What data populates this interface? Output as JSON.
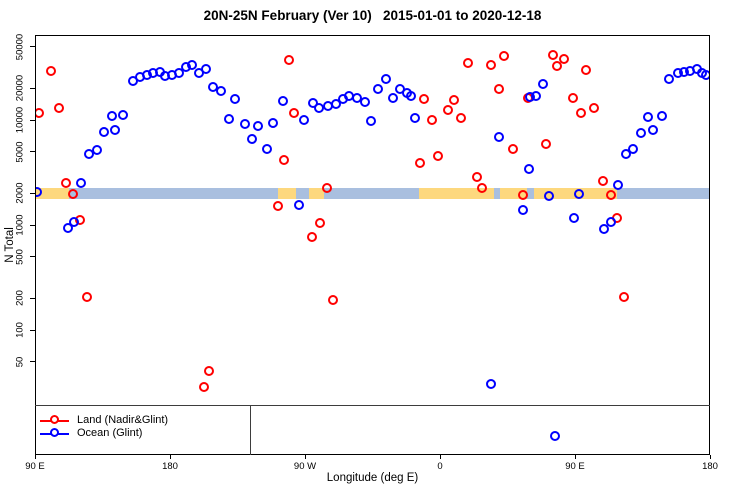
{
  "chart_data": {
    "type": "scatter",
    "title": "20N-25N February (Ver 10)   2015-01-01 to 2020-12-18",
    "xlabel": "Longitude (deg E)",
    "ylabel": "N Total",
    "x_axis": {
      "description": "longitude wrapping eastward from 90E; pos = degrees east of left edge",
      "range": [
        0,
        450
      ],
      "ticks": [
        {
          "pos": 0,
          "label": "90 E"
        },
        {
          "pos": 90,
          "label": "180"
        },
        {
          "pos": 180,
          "label": "90 W"
        },
        {
          "pos": 270,
          "label": "0"
        },
        {
          "pos": 360,
          "label": "90 E"
        },
        {
          "pos": 450,
          "label": "180"
        }
      ]
    },
    "y_axis": {
      "scale": "log",
      "ticks": [
        50,
        100,
        200,
        500,
        1000,
        2000,
        5000,
        10000,
        20000,
        50000
      ],
      "min": 6.5,
      "max": 57500
    },
    "series": [
      {
        "name": "Land (Nadir&Glint)",
        "color": "#ff0000",
        "points": [
          [
            10,
            30000
          ],
          [
            2,
            11900
          ],
          [
            15.3,
            13300
          ],
          [
            20,
            2570
          ],
          [
            24.7,
            2020
          ],
          [
            29.3,
            1140
          ],
          [
            34,
            211
          ],
          [
            112,
            29
          ],
          [
            115.3,
            42
          ],
          [
            161.3,
            1550
          ],
          [
            165.3,
            4260
          ],
          [
            168.7,
            38100
          ],
          [
            172,
            11900
          ],
          [
            184,
            785
          ],
          [
            189.3,
            1070
          ],
          [
            194,
            2300
          ],
          [
            198,
            197
          ],
          [
            256,
            3980
          ],
          [
            258.7,
            16200
          ],
          [
            264,
            10200
          ],
          [
            268,
            4640
          ],
          [
            274.7,
            12700
          ],
          [
            278.7,
            15800
          ],
          [
            283.3,
            10700
          ],
          [
            288,
            35700
          ],
          [
            294,
            2930
          ],
          [
            297.3,
            2300
          ],
          [
            303.3,
            34100
          ],
          [
            308.7,
            20200
          ],
          [
            312,
            41600
          ],
          [
            318,
            5410
          ],
          [
            324.7,
            1970
          ],
          [
            328,
            16600
          ],
          [
            340,
            6040
          ],
          [
            344.7,
            42500
          ],
          [
            347.3,
            33400
          ],
          [
            352,
            38900
          ],
          [
            358,
            16600
          ],
          [
            363.3,
            11900
          ],
          [
            366.7,
            30600
          ],
          [
            372,
            13300
          ],
          [
            378,
            2680
          ],
          [
            383.3,
            1970
          ],
          [
            387.3,
            1190
          ],
          [
            392,
            211
          ]
        ]
      },
      {
        "name": "Ocean (Glint)",
        "color": "#0000ff",
        "points": [
          [
            0.7,
            2110
          ],
          [
            21.3,
            957
          ],
          [
            25.3,
            1090
          ],
          [
            30,
            2570
          ],
          [
            35.3,
            4850
          ],
          [
            40.7,
            5290
          ],
          [
            45.3,
            7850
          ],
          [
            50.7,
            11200
          ],
          [
            52.7,
            8210
          ],
          [
            58,
            11400
          ],
          [
            64.7,
            24000
          ],
          [
            69.3,
            26200
          ],
          [
            74,
            27400
          ],
          [
            78,
            28600
          ],
          [
            82.7,
            29300
          ],
          [
            86,
            26800
          ],
          [
            90.7,
            27400
          ],
          [
            95.3,
            28600
          ],
          [
            100,
            32700
          ],
          [
            104,
            34100
          ],
          [
            108.7,
            28600
          ],
          [
            113.3,
            31300
          ],
          [
            118,
            21100
          ],
          [
            123.3,
            19300
          ],
          [
            128.7,
            10400
          ],
          [
            132.7,
            16200
          ],
          [
            139.3,
            9360
          ],
          [
            144,
            6740
          ],
          [
            148,
            8960
          ],
          [
            154,
            5410
          ],
          [
            158,
            9570
          ],
          [
            164.7,
            15500
          ],
          [
            175.3,
            1580
          ],
          [
            178.7,
            10200
          ],
          [
            184.7,
            14800
          ],
          [
            188.7,
            13300
          ],
          [
            194.7,
            13900
          ],
          [
            200,
            14500
          ],
          [
            204.7,
            16200
          ],
          [
            208.7,
            17300
          ],
          [
            214,
            16600
          ],
          [
            219.3,
            15200
          ],
          [
            223.3,
            10000
          ],
          [
            228,
            20200
          ],
          [
            233.3,
            25100
          ],
          [
            238,
            16600
          ],
          [
            242.7,
            20200
          ],
          [
            247.3,
            18500
          ],
          [
            250,
            17300
          ],
          [
            252.7,
            10700
          ],
          [
            303.3,
            31
          ],
          [
            308.7,
            7040
          ],
          [
            324.7,
            1420
          ],
          [
            328.7,
            3490
          ],
          [
            329.3,
            16900
          ],
          [
            333.3,
            17300
          ],
          [
            338,
            22500
          ],
          [
            342,
            1930
          ],
          [
            346,
            10
          ],
          [
            358.7,
            1190
          ],
          [
            362,
            2020
          ],
          [
            378.7,
            936
          ],
          [
            383.3,
            1090
          ],
          [
            388,
            2460
          ],
          [
            393.3,
            4850
          ],
          [
            398,
            5410
          ],
          [
            403.3,
            7690
          ],
          [
            408,
            10900
          ],
          [
            411.3,
            8210
          ],
          [
            417.3,
            11200
          ],
          [
            422,
            25100
          ],
          [
            428,
            28600
          ],
          [
            432,
            29300
          ],
          [
            436,
            29900
          ],
          [
            440.7,
            31300
          ],
          [
            444,
            28600
          ],
          [
            446.7,
            27400
          ]
        ]
      }
    ],
    "land_ocean_band": {
      "n_top": 2300,
      "n_bottom": 1790,
      "land_color": "#fdd87e",
      "ocean_color": "#a9bfdf",
      "segments": [
        {
          "from": 0,
          "to": 22,
          "surface": "land"
        },
        {
          "from": 22,
          "to": 161,
          "surface": "ocean"
        },
        {
          "from": 161,
          "to": 173,
          "surface": "land"
        },
        {
          "from": 173,
          "to": 182,
          "surface": "ocean"
        },
        {
          "from": 182,
          "to": 192,
          "surface": "land"
        },
        {
          "from": 192,
          "to": 255,
          "surface": "ocean"
        },
        {
          "from": 255,
          "to": 305,
          "surface": "land"
        },
        {
          "from": 305,
          "to": 309,
          "surface": "ocean"
        },
        {
          "from": 309,
          "to": 327,
          "surface": "land"
        },
        {
          "from": 327,
          "to": 332,
          "surface": "ocean"
        },
        {
          "from": 332,
          "to": 387,
          "surface": "land"
        },
        {
          "from": 387,
          "to": 450,
          "surface": "ocean"
        }
      ]
    }
  },
  "legend": {
    "entries": [
      {
        "label": "Land (Nadir&Glint)",
        "color": "#ff0000"
      },
      {
        "label": "Ocean (Glint)",
        "color": "#0000ff"
      }
    ]
  },
  "colors": {
    "land_series": "#ff0000",
    "ocean_series": "#0000ff",
    "band_land": "#fdd87e",
    "band_ocean": "#a9bfdf",
    "axis": "#000000",
    "legend_box_line": "#3d3d3d"
  }
}
